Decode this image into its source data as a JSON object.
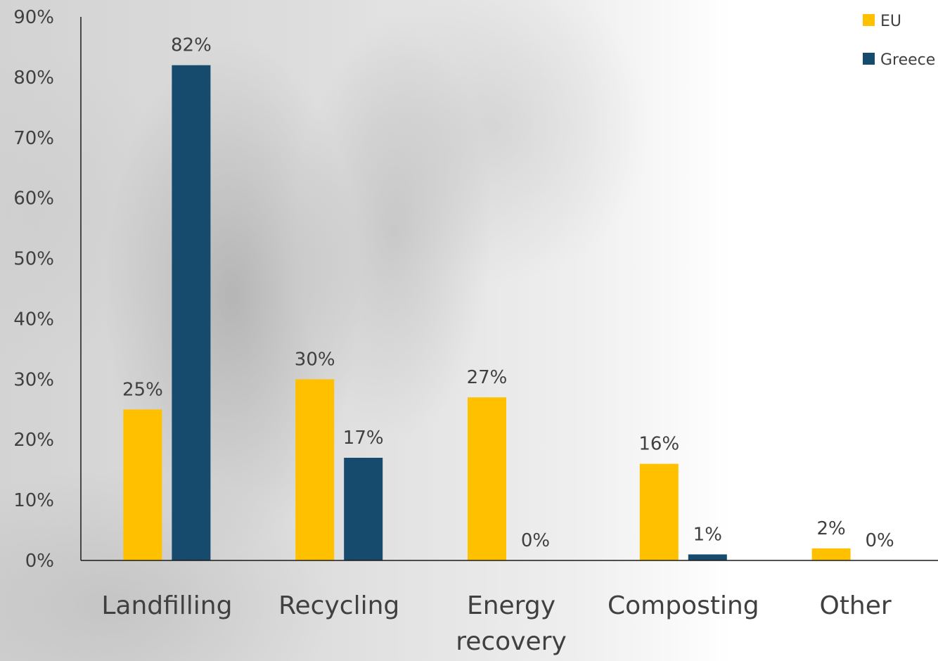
{
  "chart_data": {
    "type": "bar",
    "categories": [
      "Landfilling",
      "Recycling",
      "Energy recovery",
      "Composting",
      "Other"
    ],
    "category_lines": [
      [
        "Landfilling"
      ],
      [
        "Recycling"
      ],
      [
        "Energy",
        "recovery"
      ],
      [
        "Composting"
      ],
      [
        "Other"
      ]
    ],
    "series": [
      {
        "name": "EU",
        "color": "#FFC000",
        "values": [
          25,
          30,
          27,
          16,
          2
        ],
        "labels": [
          "25%",
          "30%",
          "27%",
          "16%",
          "2%"
        ]
      },
      {
        "name": "Greece",
        "color": "#164B6E",
        "values": [
          82,
          17,
          0,
          1,
          0
        ],
        "labels": [
          "82%",
          "17%",
          "0%",
          "1%",
          "0%"
        ]
      }
    ],
    "ylim": [
      0,
      90
    ],
    "yticks": [
      "0%",
      "10%",
      "20%",
      "30%",
      "40%",
      "50%",
      "60%",
      "70%",
      "80%",
      "90%"
    ],
    "legend_position": "top-right",
    "grid": false,
    "title": "",
    "xlabel": "",
    "ylabel": ""
  }
}
